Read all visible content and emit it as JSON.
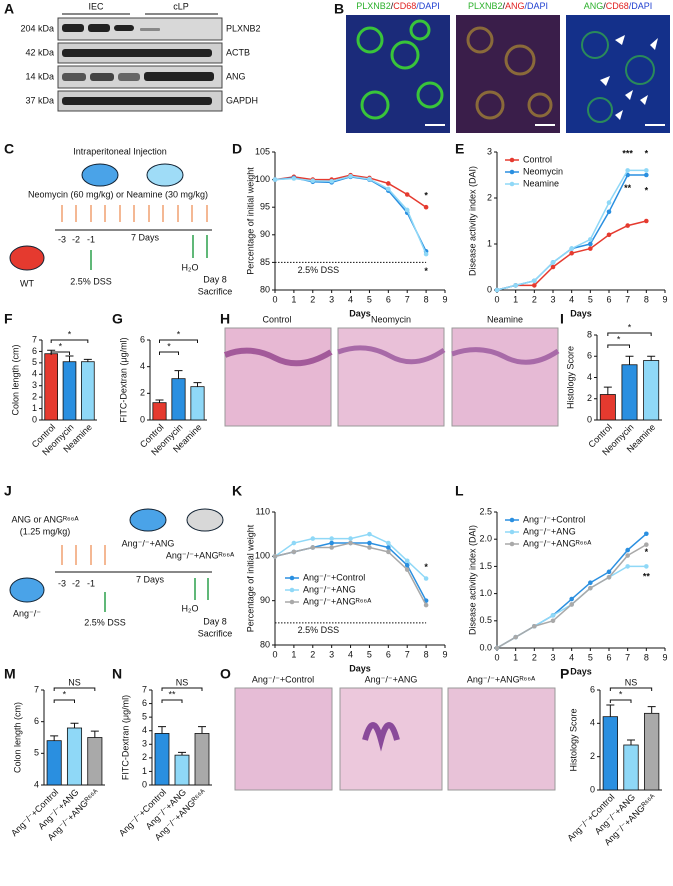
{
  "panel_labels": [
    "A",
    "B",
    "C",
    "D",
    "E",
    "F",
    "G",
    "H",
    "I",
    "J",
    "K",
    "L",
    "M",
    "N",
    "O",
    "P"
  ],
  "panel_a": {
    "groups": [
      "IEC",
      "cLP"
    ],
    "sizes": [
      "204 kDa",
      "42 kDa",
      "14 kDa",
      "37 kDa"
    ],
    "proteins": [
      "PLXNB2",
      "ACTB",
      "ANG",
      "GAPDH"
    ]
  },
  "panel_b": {
    "titles": [
      [
        "PLXNB2",
        "/",
        "CD68",
        "/DAPI"
      ],
      [
        "PLXNB2",
        "/",
        "ANG",
        "/DAPI"
      ],
      [
        "ANG",
        "/",
        "CD68",
        "/DAPI"
      ]
    ]
  },
  "panel_c": {
    "injection": "Intraperitoneal Injection",
    "drugs": "Neomycin (60 mg/kg) or Neamine (30 mg/kg)",
    "mouse": "WT",
    "days": [
      "-3",
      "-2",
      "-1"
    ],
    "period": "7 Days",
    "dss": "2.5% DSS",
    "water": "H₂O",
    "end": [
      "Day 8",
      "Sacrifice"
    ]
  },
  "panel_h": {
    "labels": [
      "Control",
      "Neomycin",
      "Neamine"
    ]
  },
  "panel_j": {
    "drug": "ANG or ANGᴿ⁶⁶ᴬ",
    "dose": "(1.25 mg/kg)",
    "groups": [
      "Ang⁻/⁻+ANG",
      "Ang⁻/⁻+ANGᴿ⁶⁶ᴬ"
    ],
    "mouse": "Ang⁻/⁻",
    "days": [
      "-3",
      "-2",
      "-1"
    ],
    "period": "7 Days",
    "dss": "2.5% DSS",
    "water": "H₂O",
    "end": [
      "Day 8",
      "Sacrifice"
    ]
  },
  "panel_o": {
    "labels": [
      "Ang⁻/⁻+Control",
      "Ang⁻/⁻+ANG",
      "Ang⁻/⁻+ANGᴿ⁶⁶ᴬ"
    ]
  },
  "chart_data": [
    {
      "type": "line",
      "x": [
        0,
        1,
        2,
        3,
        4,
        5,
        6,
        7,
        8
      ],
      "xlim": [
        0,
        9
      ],
      "xticks": [
        0,
        1,
        2,
        3,
        4,
        5,
        6,
        7,
        8,
        9
      ],
      "ylim": [
        80,
        105
      ],
      "yticks": [
        80,
        85,
        90,
        95,
        100,
        105
      ],
      "xlabel": "Days",
      "ylabel": "Percentage of initial weight",
      "series": [
        {
          "name": "Control",
          "color": "#e53a2f",
          "values": [
            100,
            100.5,
            100,
            100,
            100.8,
            100.3,
            99.3,
            97.3,
            95
          ]
        },
        {
          "name": "Neomycin",
          "color": "#2a8fe0",
          "values": [
            100,
            100.3,
            99.6,
            99.5,
            100.5,
            100,
            98,
            94,
            87
          ]
        },
        {
          "name": "Neamine",
          "color": "#8fd8f7",
          "values": [
            100,
            100.2,
            99.8,
            99.7,
            100.6,
            100.1,
            98.3,
            94.5,
            86.5
          ]
        }
      ],
      "reference": {
        "value": 85,
        "label": "2.5% DSS"
      },
      "annotations": [
        "*",
        "*"
      ],
      "legend": false
    },
    {
      "type": "line",
      "x": [
        0,
        1,
        2,
        3,
        4,
        5,
        6,
        7,
        8
      ],
      "xlim": [
        0,
        9
      ],
      "xticks": [
        0,
        1,
        2,
        3,
        4,
        5,
        6,
        7,
        8,
        9
      ],
      "ylim": [
        0,
        3
      ],
      "yticks": [
        0,
        1,
        2,
        3
      ],
      "xlabel": "Days",
      "ylabel": "Disease activity index (DAI)",
      "series": [
        {
          "name": "Control",
          "color": "#e53a2f",
          "values": [
            0,
            0.1,
            0.1,
            0.5,
            0.8,
            0.9,
            1.2,
            1.4,
            1.5
          ]
        },
        {
          "name": "Neomycin",
          "color": "#2a8fe0",
          "values": [
            0,
            0.1,
            0.2,
            0.6,
            0.9,
            1.0,
            1.7,
            2.5,
            2.5
          ]
        },
        {
          "name": "Neamine",
          "color": "#8fd8f7",
          "values": [
            0,
            0.1,
            0.2,
            0.6,
            0.9,
            1.1,
            1.9,
            2.6,
            2.6
          ]
        }
      ],
      "annotations": [
        "***",
        "**",
        "*",
        "*"
      ],
      "legend": true
    },
    {
      "type": "bar",
      "categories": [
        "Control",
        "Neomycin",
        "Neamine"
      ],
      "values": [
        5.8,
        5.1,
        5.1
      ],
      "errors": [
        0.3,
        0.5,
        0.2
      ],
      "colors": [
        "#e53a2f",
        "#2a8fe0",
        "#8fd8f7"
      ],
      "ylim": [
        0,
        7
      ],
      "yticks": [
        0,
        1,
        2,
        3,
        4,
        5,
        6,
        7
      ],
      "ylabel": "Colon length (cm)",
      "significance": [
        "*",
        "*"
      ]
    },
    {
      "type": "bar",
      "categories": [
        "Control",
        "Neomycin",
        "Neamine"
      ],
      "values": [
        1.3,
        3.1,
        2.5
      ],
      "errors": [
        0.2,
        0.6,
        0.3
      ],
      "colors": [
        "#e53a2f",
        "#2a8fe0",
        "#8fd8f7"
      ],
      "ylim": [
        0,
        6
      ],
      "yticks": [
        0,
        2,
        4,
        6
      ],
      "ylabel": "FITC-Dextran (μg/ml)",
      "significance": [
        "*",
        "*"
      ]
    },
    {
      "type": "bar",
      "categories": [
        "Control",
        "Neomycin",
        "Neamine"
      ],
      "values": [
        2.4,
        5.2,
        5.6
      ],
      "errors": [
        0.7,
        0.8,
        0.4
      ],
      "colors": [
        "#e53a2f",
        "#2a8fe0",
        "#8fd8f7"
      ],
      "ylim": [
        0,
        8
      ],
      "yticks": [
        0,
        2,
        4,
        6,
        8
      ],
      "ylabel": "Histology Score",
      "significance": [
        "*",
        "*"
      ]
    },
    {
      "type": "line",
      "x": [
        0,
        1,
        2,
        3,
        4,
        5,
        6,
        7,
        8
      ],
      "xlim": [
        0,
        9
      ],
      "xticks": [
        0,
        1,
        2,
        3,
        4,
        5,
        6,
        7,
        8,
        9
      ],
      "ylim": [
        80,
        110
      ],
      "yticks": [
        80,
        90,
        100,
        110
      ],
      "xlabel": "Days",
      "ylabel": "Percentage of initial weight",
      "series": [
        {
          "name": "Ang⁻/⁻+Control",
          "color": "#2a8fe0",
          "values": [
            100,
            101,
            102,
            103,
            103,
            103,
            102,
            98,
            90
          ]
        },
        {
          "name": "Ang⁻/⁻+ANG",
          "color": "#8fd8f7",
          "values": [
            100,
            103,
            104,
            104,
            104,
            105,
            103,
            99,
            95
          ]
        },
        {
          "name": "Ang⁻/⁻+ANGᴿ⁶⁶ᴬ",
          "color": "#a9a9a9",
          "values": [
            100,
            101,
            102,
            102,
            103,
            102,
            101,
            97,
            89
          ]
        }
      ],
      "reference": {
        "value": 85,
        "label": "2.5% DSS"
      },
      "annotations": [
        "*"
      ],
      "legend": true
    },
    {
      "type": "line",
      "x": [
        0,
        1,
        2,
        3,
        4,
        5,
        6,
        7,
        8
      ],
      "xlim": [
        0,
        9
      ],
      "xticks": [
        0,
        1,
        2,
        3,
        4,
        5,
        6,
        7,
        8,
        9
      ],
      "ylim": [
        0,
        2.5
      ],
      "yticks": [
        {
          "value": 0,
          "label": "0.0"
        },
        0.5,
        {
          "value": 1,
          "label": "1.0"
        },
        1.5,
        {
          "value": 2,
          "label": "2.0"
        },
        2.5
      ],
      "xlabel": "Days",
      "ylabel": "Disease activity index (DAI)",
      "series": [
        {
          "name": "Ang⁻/⁻+Control",
          "color": "#2a8fe0",
          "values": [
            0,
            0.2,
            0.4,
            0.6,
            0.9,
            1.2,
            1.4,
            1.8,
            2.1
          ]
        },
        {
          "name": "Ang⁻/⁻+ANG",
          "color": "#8fd8f7",
          "values": [
            0,
            0.2,
            0.4,
            0.6,
            0.8,
            1.1,
            1.3,
            1.5,
            1.5
          ]
        },
        {
          "name": "Ang⁻/⁻+ANGᴿ⁶⁶ᴬ",
          "color": "#a9a9a9",
          "values": [
            0,
            0.2,
            0.4,
            0.5,
            0.8,
            1.1,
            1.3,
            1.7,
            1.9
          ]
        }
      ],
      "annotations": [
        "*",
        "**"
      ],
      "legend": true
    },
    {
      "type": "bar",
      "categories": [
        "Ang⁻/⁻+Control",
        "Ang⁻/⁻+ANG",
        "Ang⁻/⁻+ANGᴿ⁶⁶ᴬ"
      ],
      "values": [
        5.4,
        5.8,
        5.5
      ],
      "errors": [
        0.15,
        0.15,
        0.2
      ],
      "colors": [
        "#2a8fe0",
        "#8fd8f7",
        "#a9a9a9"
      ],
      "ylim": [
        4,
        7
      ],
      "yticks": [
        4,
        5,
        6,
        7
      ],
      "ylabel": "Colon length (cm)",
      "significance": [
        "NS",
        "*"
      ]
    },
    {
      "type": "bar",
      "categories": [
        "Ang⁻/⁻+Control",
        "Ang⁻/⁻+ANG",
        "Ang⁻/⁻+ANGᴿ⁶⁶ᴬ"
      ],
      "values": [
        3.8,
        2.2,
        3.8
      ],
      "errors": [
        0.5,
        0.2,
        0.5
      ],
      "colors": [
        "#2a8fe0",
        "#8fd8f7",
        "#a9a9a9"
      ],
      "ylim": [
        0,
        7
      ],
      "yticks": [
        0,
        1,
        2,
        3,
        4,
        5,
        6,
        7
      ],
      "ylabel": "FITC-Dextran (μg/ml)",
      "significance": [
        "NS",
        "**"
      ]
    },
    {
      "type": "bar",
      "categories": [
        "Ang⁻/⁻+Control",
        "Ang⁻/⁻+ANG",
        "Ang⁻/⁻+ANGᴿ⁶⁶ᴬ"
      ],
      "values": [
        4.4,
        2.7,
        4.6
      ],
      "errors": [
        0.7,
        0.3,
        0.4
      ],
      "colors": [
        "#2a8fe0",
        "#8fd8f7",
        "#a9a9a9"
      ],
      "ylim": [
        0,
        6
      ],
      "yticks": [
        0,
        2,
        4,
        6
      ],
      "ylabel": "Histology Score",
      "significance": [
        "NS",
        "*"
      ]
    }
  ]
}
